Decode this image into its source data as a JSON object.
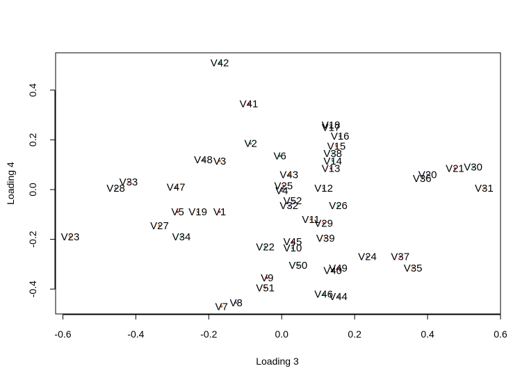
{
  "chart_data": {
    "type": "scatter",
    "title": "",
    "xlabel": "Loading 3",
    "ylabel": "Loading 4",
    "xlim": [
      -0.62,
      0.6
    ],
    "ylim": [
      -0.5,
      0.55
    ],
    "xticks": [
      "-0.6",
      "-0.4",
      "-0.2",
      "0.0",
      "0.2",
      "0.4",
      "0.6"
    ],
    "yticks": [
      "-0.4",
      "-0.2",
      "0.0",
      "0.2",
      "0.4"
    ],
    "grid": false,
    "legend": "none",
    "points": [
      {
        "label": "V1",
        "x": -0.17,
        "y": -0.09
      },
      {
        "label": "V2",
        "x": -0.085,
        "y": 0.185
      },
      {
        "label": "V3",
        "x": -0.17,
        "y": 0.115
      },
      {
        "label": "V4",
        "x": 0.0,
        "y": -0.005
      },
      {
        "label": "V5",
        "x": -0.285,
        "y": -0.09
      },
      {
        "label": "V6",
        "x": -0.005,
        "y": 0.135
      },
      {
        "label": "V7",
        "x": -0.165,
        "y": -0.47
      },
      {
        "label": "V8",
        "x": -0.125,
        "y": -0.455
      },
      {
        "label": "V9",
        "x": -0.04,
        "y": -0.355
      },
      {
        "label": "V10",
        "x": 0.03,
        "y": -0.235
      },
      {
        "label": "V11",
        "x": 0.08,
        "y": -0.12
      },
      {
        "label": "V12",
        "x": 0.115,
        "y": 0.005
      },
      {
        "label": "V13",
        "x": 0.135,
        "y": 0.085
      },
      {
        "label": "V14",
        "x": 0.14,
        "y": 0.115
      },
      {
        "label": "V15",
        "x": 0.15,
        "y": 0.175
      },
      {
        "label": "V16",
        "x": 0.16,
        "y": 0.215
      },
      {
        "label": "V17",
        "x": 0.135,
        "y": 0.25
      },
      {
        "label": "V18",
        "x": 0.135,
        "y": 0.26
      },
      {
        "label": "V19",
        "x": -0.23,
        "y": -0.09
      },
      {
        "label": "V20",
        "x": 0.4,
        "y": 0.06
      },
      {
        "label": "V21",
        "x": 0.475,
        "y": 0.085
      },
      {
        "label": "V22",
        "x": -0.045,
        "y": -0.23
      },
      {
        "label": "V23",
        "x": -0.58,
        "y": -0.19
      },
      {
        "label": "V24",
        "x": 0.235,
        "y": -0.27
      },
      {
        "label": "V25",
        "x": 0.005,
        "y": 0.015
      },
      {
        "label": "V26",
        "x": 0.155,
        "y": -0.065
      },
      {
        "label": "V27",
        "x": -0.335,
        "y": -0.145
      },
      {
        "label": "V28",
        "x": -0.455,
        "y": 0.005
      },
      {
        "label": "V29",
        "x": 0.115,
        "y": -0.135
      },
      {
        "label": "V30",
        "x": 0.525,
        "y": 0.09
      },
      {
        "label": "V31",
        "x": 0.555,
        "y": 0.005
      },
      {
        "label": "V32",
        "x": 0.02,
        "y": -0.065
      },
      {
        "label": "V33",
        "x": -0.42,
        "y": 0.03
      },
      {
        "label": "V34",
        "x": -0.275,
        "y": -0.19
      },
      {
        "label": "V35",
        "x": 0.36,
        "y": -0.315
      },
      {
        "label": "V36",
        "x": 0.385,
        "y": 0.045
      },
      {
        "label": "V37",
        "x": 0.325,
        "y": -0.27
      },
      {
        "label": "V38",
        "x": 0.14,
        "y": 0.145
      },
      {
        "label": "V39",
        "x": 0.12,
        "y": -0.195
      },
      {
        "label": "V40",
        "x": 0.14,
        "y": -0.325
      },
      {
        "label": "V41",
        "x": -0.09,
        "y": 0.345
      },
      {
        "label": "V42",
        "x": -0.17,
        "y": 0.51
      },
      {
        "label": "V43",
        "x": 0.02,
        "y": 0.06
      },
      {
        "label": "V44",
        "x": 0.155,
        "y": -0.43
      },
      {
        "label": "V45",
        "x": 0.03,
        "y": -0.21
      },
      {
        "label": "V46",
        "x": 0.115,
        "y": -0.42
      },
      {
        "label": "V47",
        "x": -0.29,
        "y": 0.01
      },
      {
        "label": "V48",
        "x": -0.215,
        "y": 0.12
      },
      {
        "label": "V49",
        "x": 0.155,
        "y": -0.315
      },
      {
        "label": "V50",
        "x": 0.045,
        "y": -0.305
      },
      {
        "label": "V51",
        "x": -0.045,
        "y": -0.395
      },
      {
        "label": "V52",
        "x": 0.03,
        "y": -0.045
      }
    ]
  }
}
